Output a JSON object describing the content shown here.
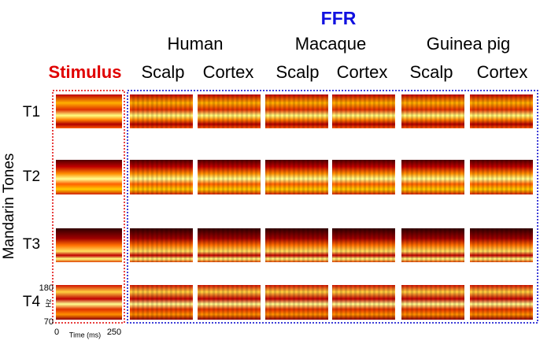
{
  "header": {
    "title": "FFR",
    "species": [
      "Human",
      "Macaque",
      "Guinea pig"
    ],
    "stimulus": "Stimulus",
    "sites": [
      "Scalp",
      "Cortex",
      "Scalp",
      "Cortex",
      "Scalp",
      "Cortex"
    ]
  },
  "rows": {
    "title": "Mandarin Tones",
    "labels": [
      "T1",
      "T2",
      "T3",
      "T4"
    ]
  },
  "axis": {
    "y_top": "180",
    "y_bottom": "70",
    "y_unit": "Hz",
    "x_start": "0",
    "x_end": "250",
    "x_label": "Time (ms)"
  }
}
